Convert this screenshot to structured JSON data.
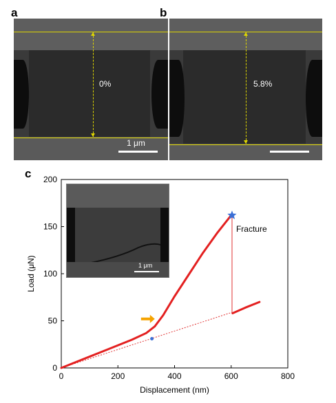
{
  "panels": {
    "a": {
      "letter": "a",
      "strain_label": "0%",
      "scale_label": "1 μm"
    },
    "b": {
      "letter": "b",
      "strain_label": "5.8%"
    },
    "c": {
      "letter": "c",
      "inset_scale_label": "1 μm"
    }
  },
  "colors": {
    "curve": "#e32020",
    "annotation_line": "#e03030",
    "marker_star": "#3a6fd6",
    "marker_dot": "#3a6fd6",
    "arrow": "#f5a300",
    "sem_guide": "#e0d800"
  },
  "chart_data": {
    "type": "line",
    "xlabel": "Displacement (nm)",
    "ylabel": "Load (μN)",
    "xlim": [
      0,
      800
    ],
    "ylim": [
      0,
      200
    ],
    "xticks": [
      0,
      200,
      400,
      600,
      800
    ],
    "yticks": [
      0,
      50,
      100,
      150,
      200
    ],
    "grid": false,
    "series": [
      {
        "values_x": [
          0,
          50,
          100,
          150,
          200,
          250,
          300,
          330,
          360,
          400,
          450,
          500,
          550,
          600
        ],
        "values_y": [
          0,
          6,
          12,
          18,
          24,
          30,
          37,
          44,
          56,
          76,
          99,
          122,
          143,
          162
        ]
      },
      {
        "values_x": [
          605,
          650,
          700
        ],
        "values_y": [
          58,
          64,
          70
        ]
      }
    ],
    "fracture_point": {
      "x": 603,
      "y": 162,
      "label": "Fracture"
    },
    "reference_dot": {
      "x": 320,
      "y": 31
    },
    "arrow_point": {
      "x": 340,
      "y": 52
    },
    "dotted_line": {
      "from": [
        0,
        0
      ],
      "to": [
        603,
        59
      ]
    },
    "fracture_drop": {
      "from": [
        603,
        162
      ],
      "to": [
        603,
        59
      ]
    }
  }
}
